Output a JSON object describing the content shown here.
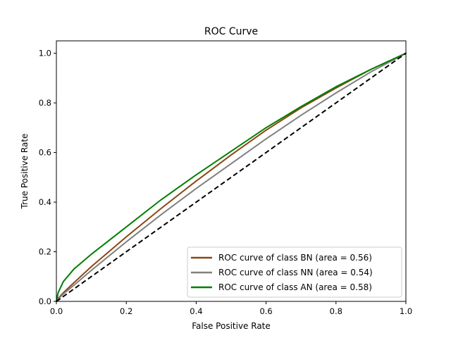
{
  "chart_data": {
    "type": "line",
    "title": "ROC Curve",
    "xlabel": "False Positive Rate",
    "ylabel": "True Positive Rate",
    "xlim": [
      0.0,
      1.0
    ],
    "ylim": [
      0.0,
      1.05
    ],
    "grid": false,
    "legend_position": "lower-right",
    "x_ticks": [
      "0.0",
      "0.2",
      "0.4",
      "0.6",
      "0.8",
      "1.0"
    ],
    "y_ticks": [
      "0.0",
      "0.2",
      "0.4",
      "0.6",
      "0.8",
      "1.0"
    ],
    "series": [
      {
        "name": "ROC curve of class BN (area = 0.56)",
        "color": "#8B4513",
        "x": [
          0,
          0.005,
          0.02,
          0.05,
          0.1,
          0.2,
          0.3,
          0.4,
          0.5,
          0.6,
          0.7,
          0.8,
          0.9,
          1.0
        ],
        "y": [
          0,
          0.012,
          0.035,
          0.075,
          0.14,
          0.26,
          0.375,
          0.485,
          0.59,
          0.69,
          0.78,
          0.86,
          0.935,
          1.0
        ]
      },
      {
        "name": "ROC curve of class NN (area = 0.54)",
        "color": "#808080",
        "x": [
          0,
          0.005,
          0.02,
          0.05,
          0.1,
          0.2,
          0.3,
          0.4,
          0.5,
          0.6,
          0.7,
          0.8,
          0.9,
          1.0
        ],
        "y": [
          0,
          0.01,
          0.03,
          0.065,
          0.125,
          0.24,
          0.35,
          0.455,
          0.555,
          0.655,
          0.75,
          0.84,
          0.925,
          1.0
        ]
      },
      {
        "name": "ROC curve of class AN (area = 0.58)",
        "color": "#008000",
        "x": [
          0,
          0.005,
          0.02,
          0.05,
          0.1,
          0.2,
          0.3,
          0.4,
          0.5,
          0.6,
          0.7,
          0.8,
          0.9,
          1.0
        ],
        "y": [
          0,
          0.035,
          0.08,
          0.13,
          0.19,
          0.3,
          0.41,
          0.51,
          0.605,
          0.7,
          0.785,
          0.865,
          0.935,
          1.0
        ]
      }
    ],
    "reference_line": {
      "x": [
        0,
        1
      ],
      "y": [
        0,
        1
      ],
      "color": "#000000",
      "style": "dashed"
    }
  }
}
